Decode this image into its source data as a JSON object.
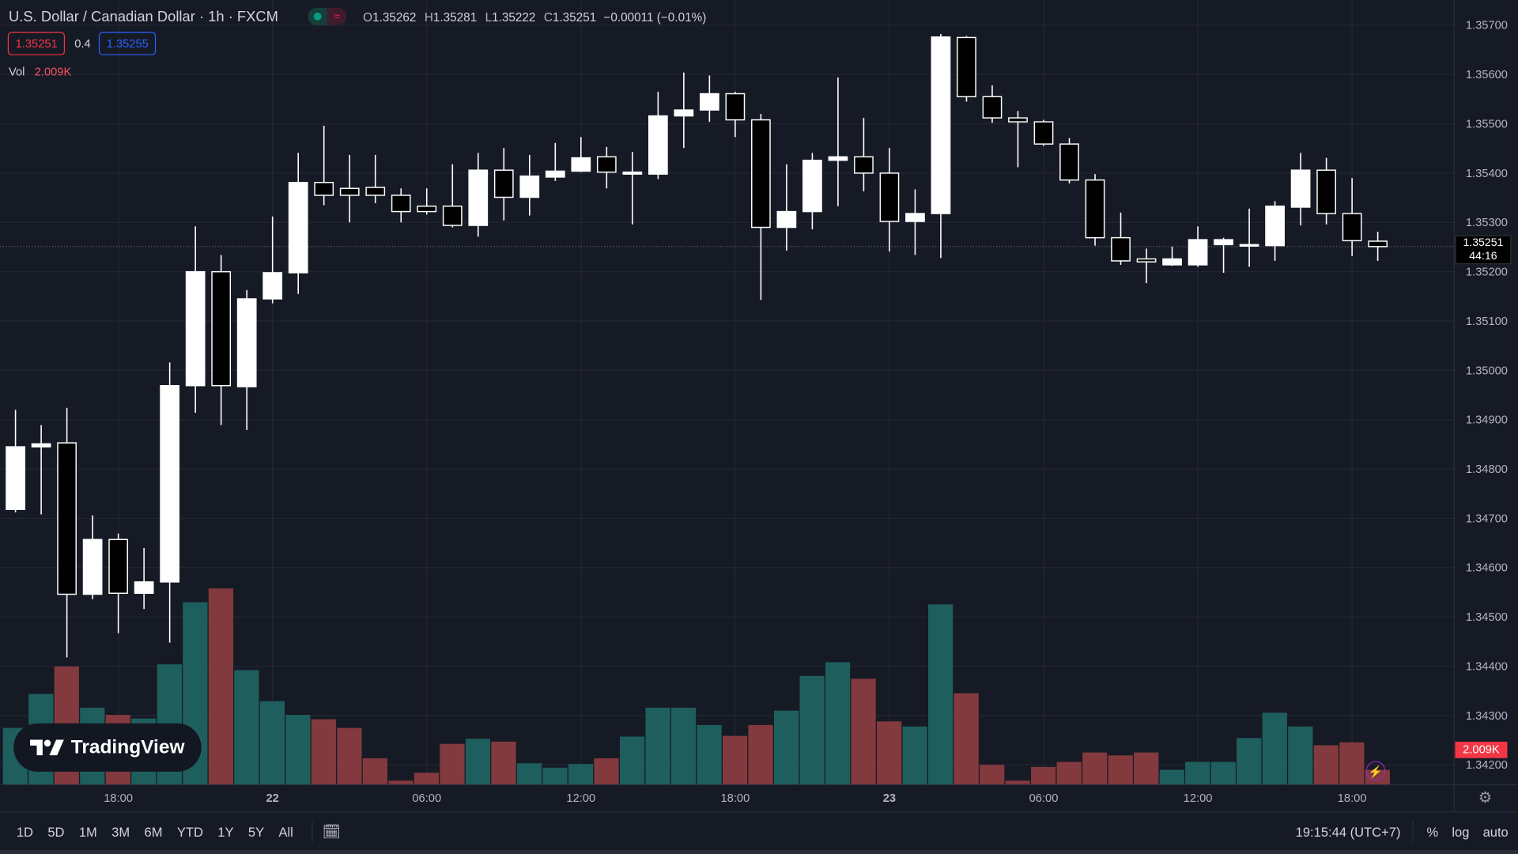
{
  "header": {
    "title": "U.S. Dollar / Canadian Dollar · 1h · FXCM",
    "market_open_icon": "green-dot",
    "delay_icon": "≈",
    "ohlc": {
      "o_label": "O",
      "o": "1.35262",
      "h_label": "H",
      "h": "1.35281",
      "l_label": "L",
      "l": "1.35222",
      "c_label": "C",
      "c": "1.35251",
      "change": "−0.00011 (−0.01%)"
    },
    "sell": "1.35251",
    "spread": "0.4",
    "buy": "1.35255"
  },
  "volume_legend": {
    "label": "Vol",
    "value": "2.009K"
  },
  "logo": "TradingView",
  "price_label": {
    "price": "1.35251",
    "countdown": "44:16"
  },
  "volume_label": "2.009K",
  "toolbar": {
    "ranges": [
      "1D",
      "5D",
      "1M",
      "3M",
      "6M",
      "YTD",
      "1Y",
      "5Y",
      "All"
    ],
    "time": "19:15:44 (UTC+7)",
    "percent": "%",
    "log": "log",
    "auto": "auto"
  },
  "colors": {
    "up": "#ffffff",
    "down": "#000000",
    "vol_up": "#1e5f5e",
    "vol_down": "#833a3e",
    "bg": "#161a25",
    "grid": "#232733"
  },
  "chart_data": {
    "type": "candlestick",
    "symbol": "USDCAD",
    "interval": "1h",
    "y_ticks": [
      "1.35700",
      "1.35600",
      "1.35500",
      "1.35400",
      "1.35300",
      "1.35200",
      "1.35100",
      "1.35000",
      "1.34900",
      "1.34800",
      "1.34700",
      "1.34600",
      "1.34500",
      "1.34400",
      "1.34300",
      "1.34200"
    ],
    "ylim": [
      1.342,
      1.357
    ],
    "x_ticks": [
      {
        "index": 4,
        "label": "18:00"
      },
      {
        "index": 10,
        "label": "22"
      },
      {
        "index": 16,
        "label": "06:00"
      },
      {
        "index": 22,
        "label": "12:00"
      },
      {
        "index": 28,
        "label": "18:00"
      },
      {
        "index": 34,
        "label": "23"
      },
      {
        "index": 40,
        "label": "06:00"
      },
      {
        "index": 46,
        "label": "12:00"
      },
      {
        "index": 52,
        "label": "18:00"
      }
    ],
    "ohlc": [
      [
        1.34718,
        1.3492,
        1.34712,
        1.34845
      ],
      [
        1.34845,
        1.34889,
        1.34708,
        1.34851
      ],
      [
        1.34853,
        1.34924,
        1.34418,
        1.34546
      ],
      [
        1.34546,
        1.34706,
        1.34536,
        1.34657
      ],
      [
        1.34657,
        1.34669,
        1.34467,
        1.34548
      ],
      [
        1.34548,
        1.3464,
        1.34516,
        1.34571
      ],
      [
        1.34571,
        1.35016,
        1.34448,
        1.34969
      ],
      [
        1.34969,
        1.35292,
        1.34914,
        1.352
      ],
      [
        1.352,
        1.35234,
        1.34889,
        1.34969
      ],
      [
        1.34967,
        1.35163,
        1.34879,
        1.35145
      ],
      [
        1.35145,
        1.35312,
        1.35136,
        1.35198
      ],
      [
        1.35198,
        1.35441,
        1.35155,
        1.35381
      ],
      [
        1.35381,
        1.35496,
        1.35335,
        1.35355
      ],
      [
        1.35369,
        1.35437,
        1.353,
        1.35355
      ],
      [
        1.35371,
        1.35437,
        1.35339,
        1.35355
      ],
      [
        1.35355,
        1.35369,
        1.353,
        1.35322
      ],
      [
        1.35333,
        1.35369,
        1.35316,
        1.35322
      ],
      [
        1.35333,
        1.35418,
        1.3529,
        1.35294
      ],
      [
        1.35294,
        1.35441,
        1.35271,
        1.35406
      ],
      [
        1.35406,
        1.35451,
        1.35304,
        1.35351
      ],
      [
        1.35351,
        1.35437,
        1.35314,
        1.35394
      ],
      [
        1.35392,
        1.35461,
        1.35384,
        1.35404
      ],
      [
        1.35404,
        1.35473,
        1.35402,
        1.35431
      ],
      [
        1.35433,
        1.35453,
        1.35369,
        1.35402
      ],
      [
        1.35398,
        1.35443,
        1.35296,
        1.35402
      ],
      [
        1.35398,
        1.35565,
        1.35388,
        1.35516
      ],
      [
        1.35516,
        1.35604,
        1.35451,
        1.35528
      ],
      [
        1.35528,
        1.35598,
        1.35504,
        1.35561
      ],
      [
        1.35561,
        1.35565,
        1.35473,
        1.35508
      ],
      [
        1.35508,
        1.3552,
        1.35143,
        1.3529
      ],
      [
        1.3529,
        1.35418,
        1.35243,
        1.35322
      ],
      [
        1.35322,
        1.35441,
        1.35286,
        1.35426
      ],
      [
        1.35426,
        1.35594,
        1.35333,
        1.35433
      ],
      [
        1.35433,
        1.35512,
        1.35363,
        1.354
      ],
      [
        1.354,
        1.35451,
        1.35241,
        1.35302
      ],
      [
        1.35302,
        1.35367,
        1.35234,
        1.35318
      ],
      [
        1.35318,
        1.35682,
        1.35228,
        1.35676
      ],
      [
        1.35675,
        1.35678,
        1.35545,
        1.35555
      ],
      [
        1.35555,
        1.35578,
        1.35502,
        1.35512
      ],
      [
        1.35512,
        1.35526,
        1.35412,
        1.35504
      ],
      [
        1.35504,
        1.35508,
        1.35455,
        1.35459
      ],
      [
        1.35459,
        1.35471,
        1.35379,
        1.35386
      ],
      [
        1.35386,
        1.35398,
        1.35253,
        1.35269
      ],
      [
        1.35269,
        1.3532,
        1.35214,
        1.35222
      ],
      [
        1.35226,
        1.35247,
        1.35177,
        1.3522
      ],
      [
        1.35214,
        1.35251,
        1.35212,
        1.35226
      ],
      [
        1.35214,
        1.35292,
        1.3521,
        1.35265
      ],
      [
        1.35255,
        1.35269,
        1.35198,
        1.35265
      ],
      [
        1.35253,
        1.35328,
        1.3521,
        1.35255
      ],
      [
        1.35253,
        1.35343,
        1.35222,
        1.35333
      ],
      [
        1.35331,
        1.35441,
        1.35294,
        1.35406
      ],
      [
        1.35406,
        1.35431,
        1.35296,
        1.35318
      ],
      [
        1.35318,
        1.3539,
        1.35232,
        1.35263
      ],
      [
        1.35262,
        1.35281,
        1.35222,
        1.35251
      ]
    ],
    "volume_k": [
      7.8,
      12.5,
      16.3,
      10.6,
      9.6,
      9.1,
      16.6,
      25.2,
      27.1,
      15.8,
      11.5,
      9.6,
      9.0,
      7.8,
      3.6,
      0.5,
      1.6,
      5.6,
      6.3,
      5.9,
      2.9,
      2.3,
      2.8,
      3.6,
      6.6,
      10.6,
      10.6,
      8.2,
      6.7,
      8.2,
      10.2,
      15.0,
      16.9,
      14.6,
      8.7,
      8.0,
      24.9,
      12.6,
      2.7,
      0.5,
      2.4,
      3.1,
      4.4,
      4.0,
      4.4,
      2.0,
      3.1,
      3.1,
      6.4,
      9.9,
      8.0,
      5.4,
      5.8,
      2.0
    ],
    "last_price": 1.35251
  }
}
